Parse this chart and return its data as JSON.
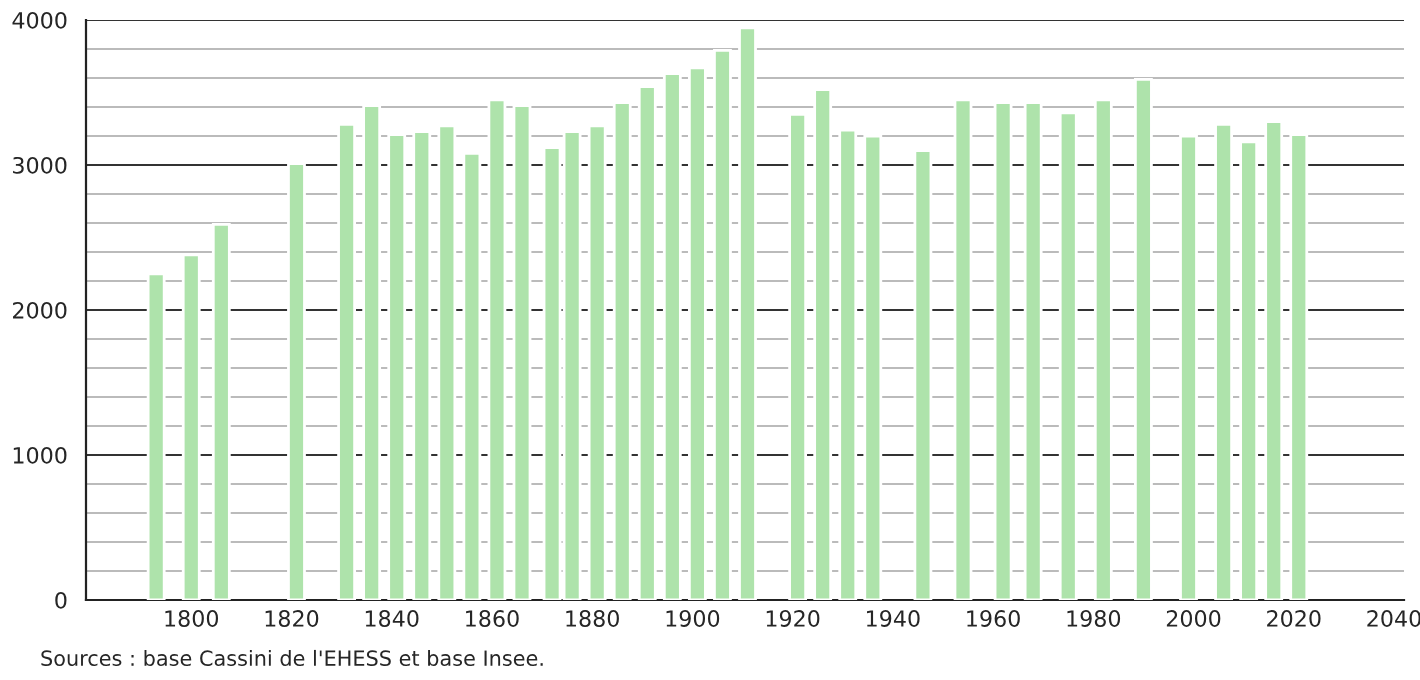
{
  "chart_data": {
    "type": "bar",
    "x": [
      1793,
      1800,
      1806,
      1821,
      1831,
      1836,
      1841,
      1846,
      1851,
      1856,
      1861,
      1866,
      1872,
      1876,
      1881,
      1886,
      1891,
      1896,
      1901,
      1906,
      1911,
      1921,
      1926,
      1931,
      1936,
      1946,
      1954,
      1962,
      1968,
      1975,
      1982,
      1990,
      1999,
      2006,
      2011,
      2016,
      2021
    ],
    "values": [
      2250,
      2380,
      2590,
      3010,
      3280,
      3410,
      3210,
      3230,
      3270,
      3080,
      3450,
      3410,
      3120,
      3230,
      3270,
      3430,
      3540,
      3630,
      3670,
      3790,
      3945,
      3350,
      3520,
      3240,
      3200,
      3100,
      3450,
      3430,
      3430,
      3360,
      3450,
      3590,
      3200,
      3280,
      3160,
      3300,
      3210
    ],
    "color": "#aee3ab",
    "xlim": [
      1779,
      2042
    ],
    "xticks": [
      1800,
      1820,
      1840,
      1860,
      1880,
      1900,
      1920,
      1940,
      1960,
      1980,
      2000,
      2020,
      2040
    ],
    "ylim": [
      0,
      4000
    ],
    "yticks": [
      0,
      {
        "value": 200,
        "label": null
      },
      {
        "value": 400,
        "label": null
      },
      {
        "value": 600,
        "label": null
      },
      {
        "value": 800,
        "label": null
      },
      1000,
      {
        "value": 1200,
        "label": null
      },
      {
        "value": 1400,
        "label": null
      },
      {
        "value": 1600,
        "label": null
      },
      {
        "value": 1800,
        "label": null
      },
      2000,
      {
        "value": 2200,
        "label": null
      },
      {
        "value": 2400,
        "label": null
      },
      {
        "value": 2600,
        "label": null
      },
      {
        "value": 2800,
        "label": null
      },
      3000,
      {
        "value": 3200,
        "label": null
      },
      {
        "value": 3400,
        "label": null
      },
      {
        "value": 3600,
        "label": null
      },
      {
        "value": 3800,
        "label": null
      },
      4000
    ],
    "grid": "y",
    "annotations": [
      "Sources : base Cassini de l'EHESS et base Insee."
    ]
  }
}
